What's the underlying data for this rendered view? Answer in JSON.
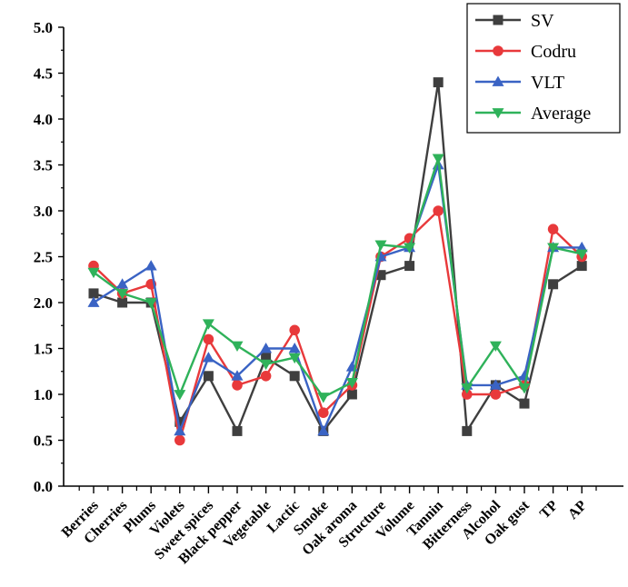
{
  "chart_data": {
    "type": "line",
    "title": "",
    "xlabel": "",
    "ylabel": "",
    "categories": [
      "Berries",
      "Cherries",
      "Plums",
      "Violets",
      "Sweet spices",
      "Black pepper",
      "Vegetable",
      "Lactic",
      "Smoke",
      "Oak aroma",
      "Structure",
      "Volume",
      "Tannin",
      "Bitterness",
      "Alcohol",
      "Oak gust",
      "TP",
      "AP"
    ],
    "ylim": [
      0,
      5.0
    ],
    "yticks": [
      "0.0",
      "0.5",
      "1.0",
      "1.5",
      "2.0",
      "2.5",
      "3.0",
      "3.5",
      "4.0",
      "4.5",
      "5.0"
    ],
    "grid": false,
    "legend_position": "top-right",
    "series": [
      {
        "name": "SV",
        "color": "#3f3f3f",
        "marker": "square",
        "values": [
          2.1,
          2.0,
          2.0,
          0.7,
          1.2,
          0.6,
          1.4,
          1.2,
          0.6,
          1.0,
          2.3,
          2.4,
          4.4,
          0.6,
          1.1,
          0.9,
          2.2,
          2.4
        ]
      },
      {
        "name": "Codru",
        "color": "#e8393b",
        "marker": "circle",
        "values": [
          2.4,
          2.1,
          2.2,
          0.5,
          1.6,
          1.1,
          1.2,
          1.7,
          0.8,
          1.1,
          2.5,
          2.7,
          3.0,
          1.0,
          1.0,
          1.1,
          2.8,
          2.5
        ]
      },
      {
        "name": "VLT",
        "color": "#3a63c4",
        "marker": "triangle-up",
        "values": [
          2.0,
          2.2,
          2.4,
          0.6,
          1.4,
          1.2,
          1.5,
          1.5,
          0.6,
          1.3,
          2.5,
          2.6,
          3.5,
          1.1,
          1.1,
          1.2,
          2.6,
          2.6
        ]
      },
      {
        "name": "Average",
        "color": "#2fb25a",
        "marker": "triangle-down",
        "values": [
          2.33,
          2.1,
          2.0,
          1.0,
          1.77,
          1.53,
          1.33,
          1.4,
          0.97,
          1.13,
          2.63,
          2.6,
          3.57,
          1.07,
          1.53,
          1.07,
          2.6,
          2.53
        ]
      }
    ]
  }
}
